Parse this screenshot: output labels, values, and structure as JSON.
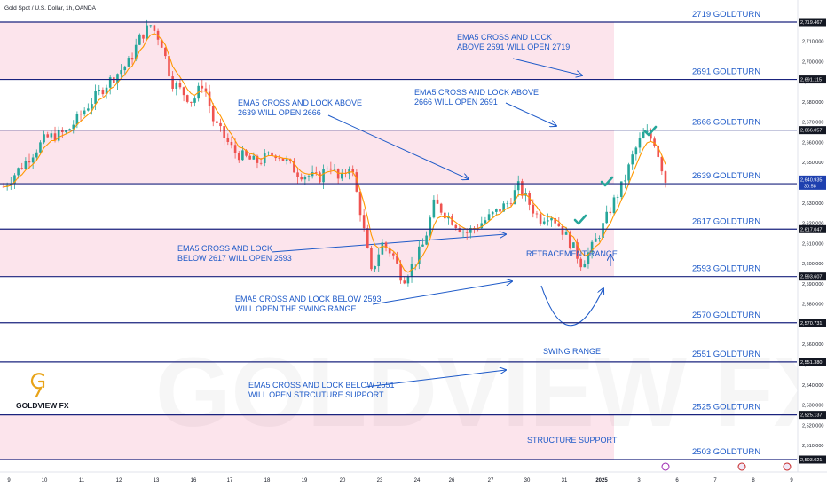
{
  "header": {
    "symbol": "Gold Spot / U.S. Dollar, 1h, OANDA"
  },
  "logo": {
    "brand": "GOLDVIEW FX",
    "watermark": "GOLDVIEW FX"
  },
  "colors": {
    "zone_fill": "#fce4ec",
    "level_line": "#1a237e",
    "annotation_blue": "#1e5ac8",
    "candle_up": "#26a69a",
    "candle_down": "#ef5350",
    "ema_line": "#ff9800",
    "checkmark": "#26a69a",
    "logo_gold": "#e8a317",
    "price_tag": "#131722",
    "current_price_tag": "#1e40af"
  },
  "chart_data": {
    "type": "candlestick",
    "title": "",
    "x_axis": {
      "ticks": [
        "9",
        "10",
        "11",
        "12",
        "13",
        "16",
        "17",
        "18",
        "19",
        "20",
        "23",
        "24",
        "26",
        "27",
        "30",
        "31",
        "2025",
        "3",
        "6",
        "7",
        "8",
        "9"
      ]
    },
    "y_axis": {
      "range": [
        2500,
        2725
      ],
      "ticks": [
        2510,
        2520,
        2530,
        2540,
        2550,
        2560,
        2570,
        2580,
        2590,
        2600,
        2610,
        2620,
        2630,
        2640,
        2650,
        2660,
        2670,
        2680,
        2690,
        2700,
        2710
      ]
    },
    "levels": [
      {
        "price": 2719.467,
        "tag": "2,719.467",
        "label": "2719 GOLDTURN"
      },
      {
        "price": 2691.115,
        "tag": "2,691.115",
        "label": "2691 GOLDTURN"
      },
      {
        "price": 2666.057,
        "tag": "2,666.057",
        "label": "2666 GOLDTURN"
      },
      {
        "price": 2639.539,
        "tag": "2,639.539",
        "label": "2639  GOLDTURN"
      },
      {
        "price": 2617.047,
        "tag": "2,617.047",
        "label": "2617 GOLDTURN"
      },
      {
        "price": 2593.607,
        "tag": "2,593.607",
        "label": "2593 GOLDTURN"
      },
      {
        "price": 2570.731,
        "tag": "2,570.731",
        "label": "2570 GOLDTURN"
      },
      {
        "price": 2551.38,
        "tag": "2,551.380",
        "label": "2551 GOLDTURN"
      },
      {
        "price": 2525.137,
        "tag": "2,525.137",
        "label": "2525 GOLDTURN"
      },
      {
        "price": 2503.021,
        "tag": "2,503.021",
        "label": "2503 GOLDTURN"
      }
    ],
    "zones": [
      {
        "from": 2691.115,
        "to": 2719.467
      },
      {
        "from": 2639.539,
        "to": 2666.057
      },
      {
        "from": 2593.607,
        "to": 2617.047
      },
      {
        "from": 2503.021,
        "to": 2525.137
      }
    ],
    "current_price": {
      "value": 2640.935,
      "tag": "2,640.935",
      "countdown": "30:58"
    },
    "price_path": [
      [
        0,
        2638
      ],
      [
        2,
        2650
      ],
      [
        4,
        2662
      ],
      [
        6,
        2665
      ],
      [
        8,
        2678
      ],
      [
        10,
        2690
      ],
      [
        11,
        2695
      ],
      [
        12,
        2700
      ],
      [
        13,
        2712
      ],
      [
        14,
        2718
      ],
      [
        15,
        2710
      ],
      [
        16,
        2690
      ],
      [
        18,
        2680
      ],
      [
        19,
        2690
      ],
      [
        20,
        2670
      ],
      [
        22,
        2655
      ],
      [
        24,
        2650
      ],
      [
        26,
        2655
      ],
      [
        28,
        2645
      ],
      [
        30,
        2642
      ],
      [
        31,
        2650
      ],
      [
        32,
        2640
      ],
      [
        33,
        2650
      ],
      [
        34,
        2625
      ],
      [
        35,
        2595
      ],
      [
        36,
        2610
      ],
      [
        37,
        2605
      ],
      [
        38,
        2592
      ],
      [
        39,
        2600
      ],
      [
        40,
        2610
      ],
      [
        41,
        2630
      ],
      [
        42,
        2625
      ],
      [
        44,
        2615
      ],
      [
        46,
        2622
      ],
      [
        48,
        2630
      ],
      [
        49,
        2638
      ],
      [
        50,
        2630
      ],
      [
        51,
        2622
      ],
      [
        52,
        2625
      ],
      [
        53,
        2618
      ],
      [
        54,
        2610
      ],
      [
        55,
        2600
      ],
      [
        56,
        2608
      ],
      [
        57,
        2618
      ],
      [
        58,
        2630
      ],
      [
        59,
        2640
      ],
      [
        60,
        2655
      ],
      [
        61,
        2665
      ],
      [
        62,
        2660
      ],
      [
        63,
        2641
      ]
    ],
    "annotations": [
      {
        "lines": [
          "EMA5 CROSS AND LOCK",
          "ABOVE 2691 WILL OPEN 2719"
        ]
      },
      {
        "lines": [
          "EMA5 CROSS AND LOCK ABOVE",
          "2639 WILL OPEN 2666"
        ]
      },
      {
        "lines": [
          "EMA5 CROSS AND LOCK ABOVE",
          "2666 WILL OPEN 2691"
        ]
      },
      {
        "lines": [
          "EMA5 CROSS AND LOCK",
          "BELOW 2617 WILL OPEN 2593"
        ]
      },
      {
        "lines": [
          "EMA5 CROSS AND LOCK BELOW 2593",
          "WILL OPEN THE SWING RANGE"
        ]
      },
      {
        "lines": [
          "EMA5 CROSS AND LOCK BELOW 2551",
          "WILL OPEN STRCUTURE SUPPORT"
        ]
      }
    ],
    "range_labels": {
      "retracement": "RETRACEMENT RANGE",
      "swing": "SWING RANGE",
      "structure": "STRUCTURE SUPPORT"
    }
  }
}
